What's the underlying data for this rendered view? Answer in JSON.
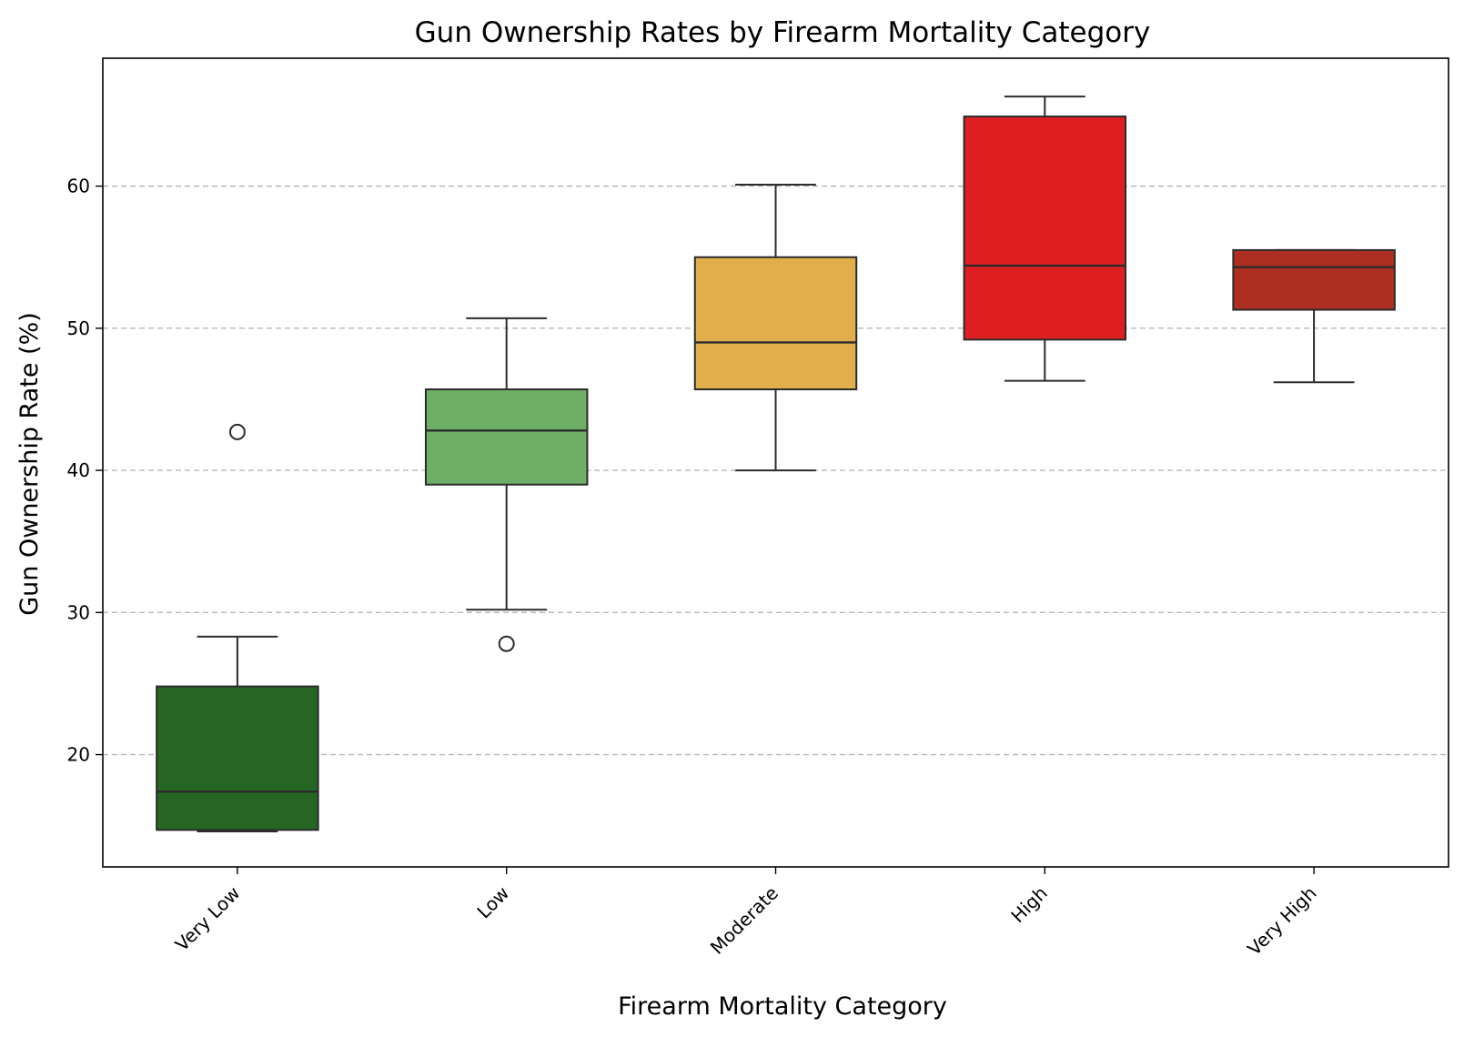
{
  "chart_data": {
    "type": "box",
    "title": "Gun Ownership Rates by Firearm Mortality Category",
    "xlabel": "Firearm Mortality Category",
    "ylabel": "Gun Ownership Rate (%)",
    "ylim": [
      12.1,
      69.0
    ],
    "yticks": [
      20,
      30,
      40,
      50,
      60
    ],
    "grid": "y-dashed",
    "categories": [
      "Very Low",
      "Low",
      "Moderate",
      "High",
      "Very High"
    ],
    "boxes": [
      {
        "category": "Very Low",
        "whisker_low": 14.6,
        "q1": 14.7,
        "median": 17.4,
        "q3": 24.8,
        "whisker_high": 28.3,
        "outliers": [
          42.7
        ],
        "color": "#256722"
      },
      {
        "category": "Low",
        "whisker_low": 30.2,
        "q1": 39.0,
        "median": 42.8,
        "q3": 45.7,
        "whisker_high": 50.7,
        "outliers": [
          27.8
        ],
        "color": "#6daf64"
      },
      {
        "category": "Moderate",
        "whisker_low": 40.0,
        "q1": 45.7,
        "median": 49.0,
        "q3": 55.0,
        "whisker_high": 60.1,
        "outliers": [],
        "color": "#e0af4c"
      },
      {
        "category": "High",
        "whisker_low": 46.3,
        "q1": 49.2,
        "median": 54.4,
        "q3": 64.9,
        "whisker_high": 66.3,
        "outliers": [],
        "color": "#de1f21"
      },
      {
        "category": "Very High",
        "whisker_low": 46.2,
        "q1": 51.3,
        "median": 54.3,
        "q3": 55.5,
        "whisker_high": 55.5,
        "outliers": [],
        "color": "#ad2f22"
      }
    ]
  }
}
